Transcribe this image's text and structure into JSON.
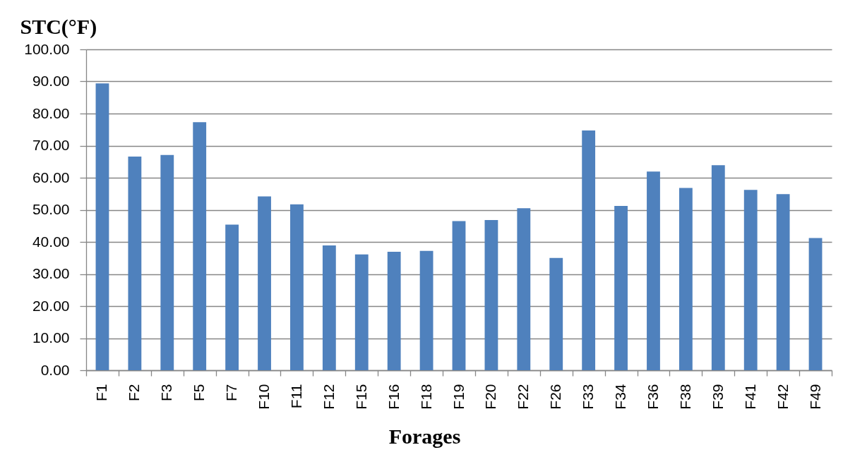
{
  "chart_data": {
    "type": "bar",
    "ylabel": "STC(°F)",
    "xlabel": "Forages",
    "categories": [
      "F1",
      "F2",
      "F3",
      "F5",
      "F7",
      "F10",
      "F11",
      "F12",
      "F15",
      "F16",
      "F18",
      "F19",
      "F20",
      "F22",
      "F26",
      "F33",
      "F34",
      "F36",
      "F38",
      "F39",
      "F41",
      "F42",
      "F49"
    ],
    "values": [
      89.4,
      66.6,
      67.1,
      77.3,
      45.4,
      54.2,
      51.7,
      38.9,
      36.1,
      36.9,
      37.2,
      46.5,
      46.8,
      50.5,
      35.0,
      74.7,
      51.2,
      61.9,
      56.8,
      63.9,
      56.2,
      54.9,
      41.2
    ],
    "color": "#4f81bd",
    "ylim": [
      0,
      100
    ],
    "yticks": [
      {
        "value": 0,
        "label": "0.00"
      },
      {
        "value": 10,
        "label": "10.00"
      },
      {
        "value": 20,
        "label": "20.00"
      },
      {
        "value": 30,
        "label": "30.00"
      },
      {
        "value": 40,
        "label": "40.00"
      },
      {
        "value": 50,
        "label": "50.00"
      },
      {
        "value": 60,
        "label": "60.00"
      },
      {
        "value": 70,
        "label": "70.00"
      },
      {
        "value": 80,
        "label": "80.00"
      },
      {
        "value": 90,
        "label": "90.00"
      },
      {
        "value": 100,
        "label": "100.00"
      }
    ],
    "grid": "y"
  }
}
